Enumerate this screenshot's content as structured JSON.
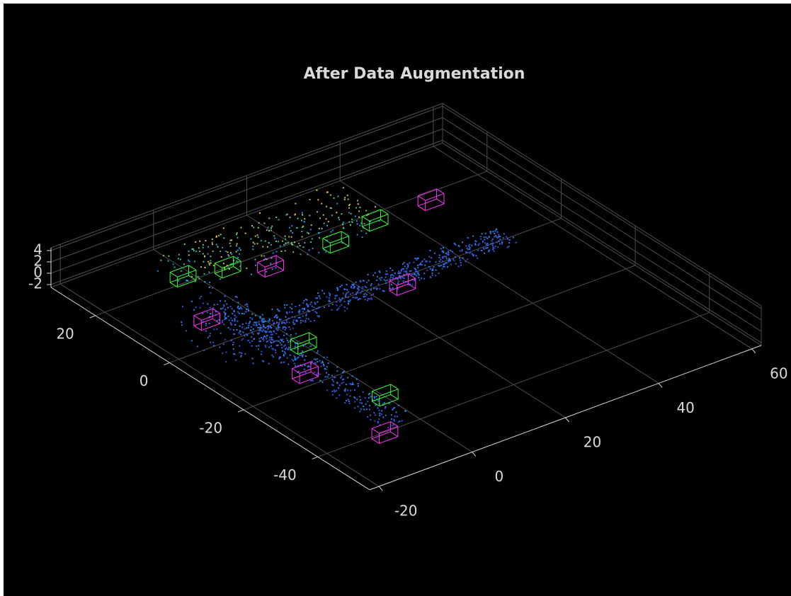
{
  "chart_data": {
    "type": "pointcloud3d",
    "title": "After Data Augmentation",
    "xlim": [
      -22,
      62
    ],
    "xticks": [
      -20,
      0,
      20,
      40,
      60
    ],
    "ylim": [
      -54,
      32
    ],
    "yticks": [
      -40,
      -20,
      0,
      20
    ],
    "zlim": [
      -2.5,
      4.5
    ],
    "zticks": [
      -2,
      0,
      2,
      4
    ],
    "grid": true,
    "background": "#000000",
    "axis_color": "#d9d9d9",
    "grid_color": "#4d4d4d"
  }
}
